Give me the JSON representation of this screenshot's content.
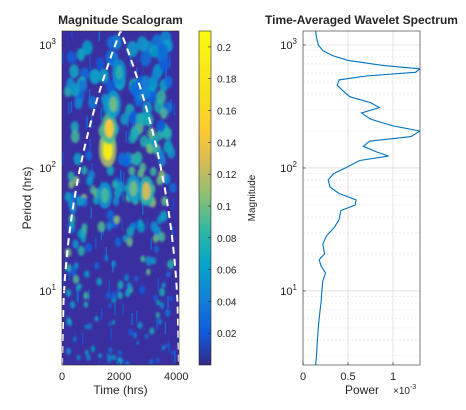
{
  "chart_data": [
    {
      "type": "heatmap",
      "title": "Magnitude Scalogram",
      "xlabel": "Time (hrs)",
      "ylabel": "Period (hrs)",
      "xlim": [
        0,
        4096
      ],
      "ylim": [
        2.5,
        1300
      ],
      "yscale": "log",
      "x_ticks": [
        0,
        2000,
        4000
      ],
      "x_tick_labels": [
        "0",
        "2000",
        "4000"
      ],
      "y_ticks": [
        10,
        100,
        1000
      ],
      "y_tick_labels": [
        "10",
        "10",
        "10"
      ],
      "y_tick_exponents": [
        "1",
        "2",
        "3"
      ],
      "colormap": "parula",
      "cone_of_influence": "white dashed",
      "colorbar": {
        "label": "Magnitude",
        "range": [
          0,
          0.21
        ],
        "ticks": [
          0.02,
          0.04,
          0.06,
          0.08,
          0.1,
          0.12,
          0.14,
          0.16,
          0.18,
          0.2
        ],
        "tick_labels": [
          "0.02",
          "0.04",
          "0.06",
          "0.08",
          "0.1",
          "0.12",
          "0.14",
          "0.16",
          "0.18",
          "0.2"
        ]
      },
      "hotspots": [
        {
          "time": 1600,
          "period": 140,
          "magnitude": 0.19
        },
        {
          "time": 1650,
          "period": 210,
          "magnitude": 0.15
        },
        {
          "time": 1800,
          "period": 330,
          "magnitude": 0.1
        },
        {
          "time": 2000,
          "period": 600,
          "magnitude": 0.08
        },
        {
          "time": 2950,
          "period": 65,
          "magnitude": 0.13
        },
        {
          "time": 2500,
          "period": 68,
          "magnitude": 0.1
        },
        {
          "time": 1500,
          "period": 60,
          "magnitude": 0.09
        }
      ]
    },
    {
      "type": "line",
      "title": "Time-Averaged Wavelet Spectrum",
      "xlabel": "Power",
      "x_exponent": "×10",
      "x_exponent_power": "-3",
      "xlim": [
        0,
        0.0013
      ],
      "x_ticks": [
        0,
        0.0005,
        0.001
      ],
      "x_tick_labels": [
        "0",
        "0.5",
        "1"
      ],
      "ylim": [
        2.5,
        1300
      ],
      "yscale": "log",
      "y_ticks": [
        10,
        100,
        1000
      ],
      "y_tick_labels": [
        "10",
        "10",
        "10"
      ],
      "y_tick_exponents": [
        "1",
        "2",
        "3"
      ],
      "grid": true,
      "color": "#0072BD",
      "series": [
        {
          "period": [
            2.5,
            3,
            4,
            5,
            6,
            7,
            8,
            10,
            12,
            14,
            16,
            18,
            20,
            24,
            28,
            33,
            38,
            45,
            50,
            55,
            62,
            70,
            80,
            90,
            100,
            115,
            125,
            135,
            150,
            165,
            180,
            200,
            220,
            250,
            280,
            310,
            340,
            380,
            420,
            470,
            520,
            560,
            600,
            640,
            680,
            750,
            820,
            900,
            1000,
            1150,
            1300
          ],
          "power": [
            0.00014,
            0.00015,
            0.00016,
            0.00017,
            0.00018,
            0.00019,
            0.0002,
            0.00021,
            0.00022,
            0.00025,
            0.0002,
            0.00018,
            0.00024,
            0.00022,
            0.00026,
            0.00035,
            0.0004,
            0.00042,
            0.00058,
            0.00059,
            0.0004,
            0.0003,
            0.00028,
            0.00034,
            0.00047,
            0.00063,
            0.00095,
            0.00082,
            0.00067,
            0.00074,
            0.0012,
            0.0013,
            0.001,
            0.00075,
            0.00065,
            0.00085,
            0.00075,
            0.00052,
            0.00045,
            0.00038,
            0.0004,
            0.0007,
            0.00125,
            0.0013,
            0.0009,
            0.0005,
            0.00033,
            0.00022,
            0.00017,
            0.00015,
            0.00014
          ]
        }
      ]
    }
  ]
}
